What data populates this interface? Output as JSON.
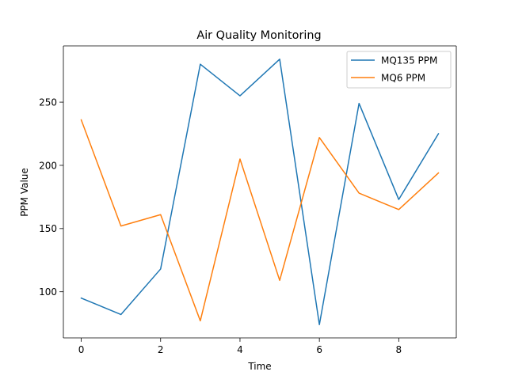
{
  "chart_data": {
    "type": "line",
    "title": "Air Quality Monitoring",
    "xlabel": "Time",
    "ylabel": "PPM Value",
    "x": [
      0,
      1,
      2,
      3,
      4,
      5,
      6,
      7,
      8,
      9
    ],
    "xlim": [
      -0.45,
      9.45
    ],
    "ylim": [
      63.5,
      294.5
    ],
    "x_ticks": [
      0,
      2,
      4,
      6,
      8
    ],
    "x_tick_labels": [
      "0",
      "2",
      "4",
      "6",
      "8"
    ],
    "y_ticks": [
      100,
      150,
      200,
      250
    ],
    "y_tick_labels": [
      "100",
      "150",
      "200",
      "250"
    ],
    "grid": false,
    "legend_position": "top-right",
    "series": [
      {
        "name": "MQ135 PPM",
        "color": "#1f77b4",
        "values": [
          95,
          82,
          118,
          280,
          255,
          284,
          74,
          249,
          173,
          225
        ]
      },
      {
        "name": "MQ6 PPM",
        "color": "#ff7f0e",
        "values": [
          236,
          152,
          161,
          77,
          205,
          109,
          222,
          178,
          165,
          194
        ]
      }
    ]
  }
}
